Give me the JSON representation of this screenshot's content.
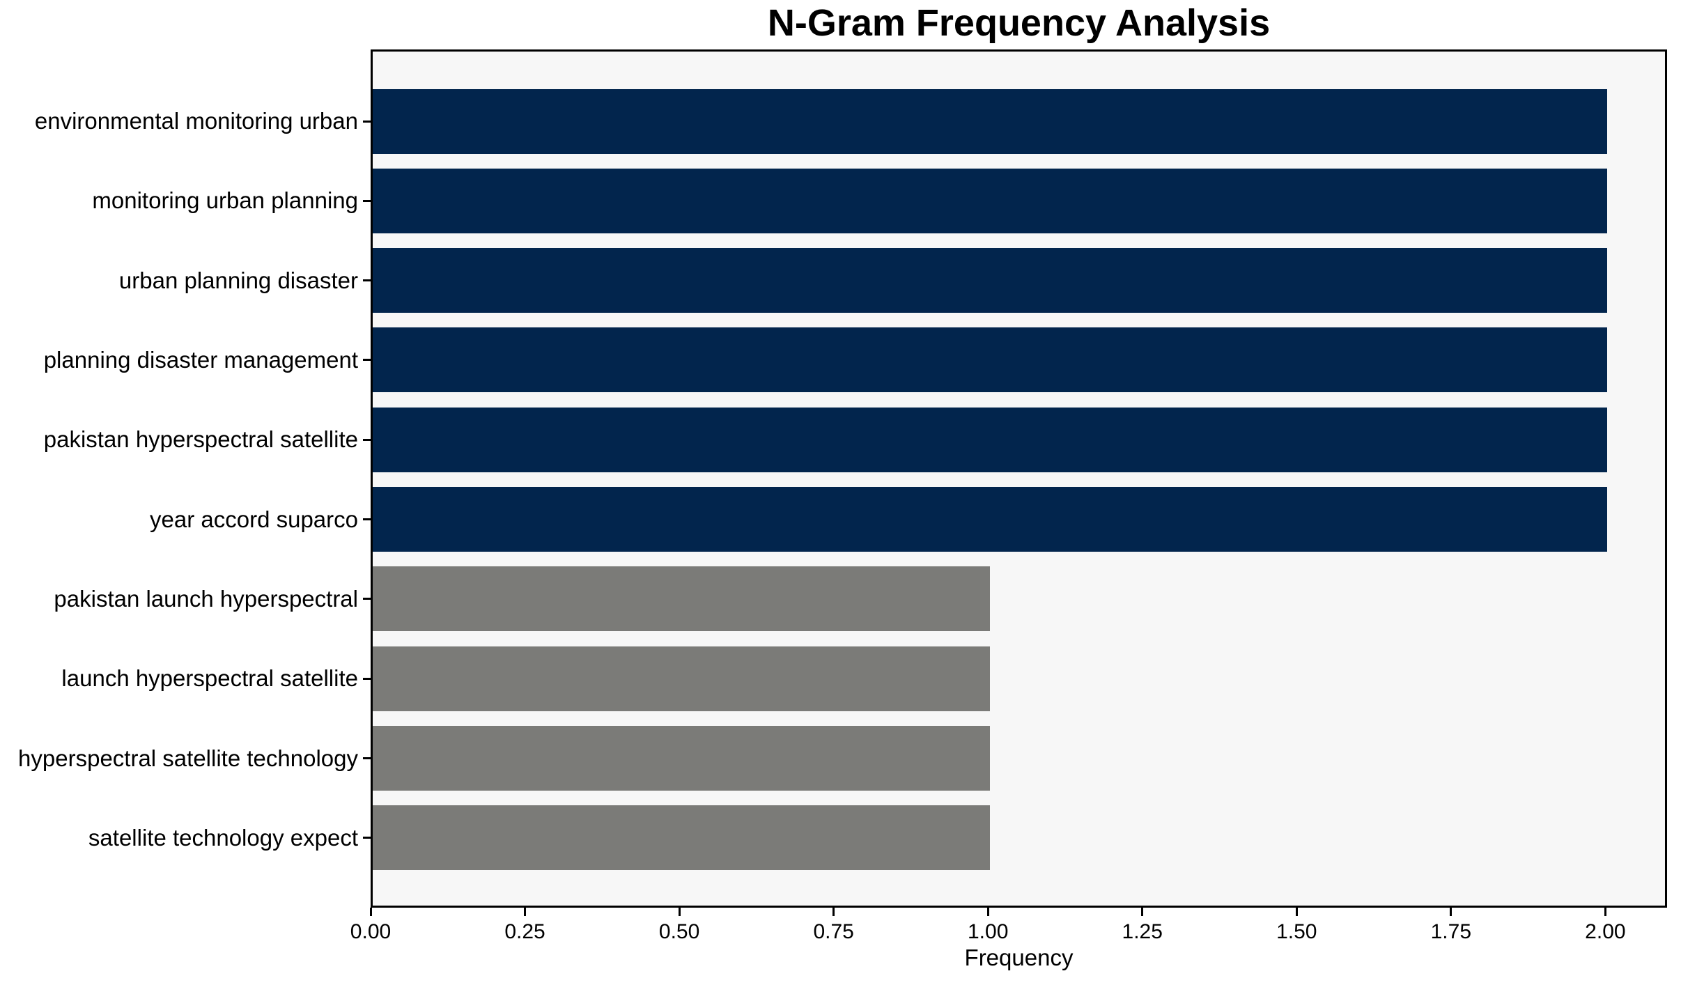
{
  "chart_data": {
    "type": "bar",
    "orientation": "horizontal",
    "title": "N-Gram Frequency Analysis",
    "xlabel": "Frequency",
    "ylabel": "",
    "xlim": [
      0,
      2.1
    ],
    "grid": false,
    "legend": false,
    "plot_background": "#f7f7f7",
    "figure_background": "#ffffff",
    "spine_color": "#000000",
    "categories": [
      "environmental monitoring urban",
      "monitoring urban planning",
      "urban planning disaster",
      "planning disaster management",
      "pakistan hyperspectral satellite",
      "year accord suparco",
      "pakistan launch hyperspectral",
      "launch hyperspectral satellite",
      "hyperspectral satellite technology",
      "satellite technology expect"
    ],
    "values": [
      2,
      2,
      2,
      2,
      2,
      2,
      1,
      1,
      1,
      1
    ],
    "bar_colors": [
      "#02254d",
      "#02254d",
      "#02254d",
      "#02254d",
      "#02254d",
      "#02254d",
      "#7b7b78",
      "#7b7b78",
      "#7b7b78",
      "#7b7b78"
    ],
    "x_ticks": [
      {
        "value": 0.0,
        "label": "0.00"
      },
      {
        "value": 0.25,
        "label": "0.25"
      },
      {
        "value": 0.5,
        "label": "0.50"
      },
      {
        "value": 0.75,
        "label": "0.75"
      },
      {
        "value": 1.0,
        "label": "1.00"
      },
      {
        "value": 1.25,
        "label": "1.25"
      },
      {
        "value": 1.5,
        "label": "1.50"
      },
      {
        "value": 1.75,
        "label": "1.75"
      },
      {
        "value": 2.0,
        "label": "2.00"
      }
    ]
  }
}
